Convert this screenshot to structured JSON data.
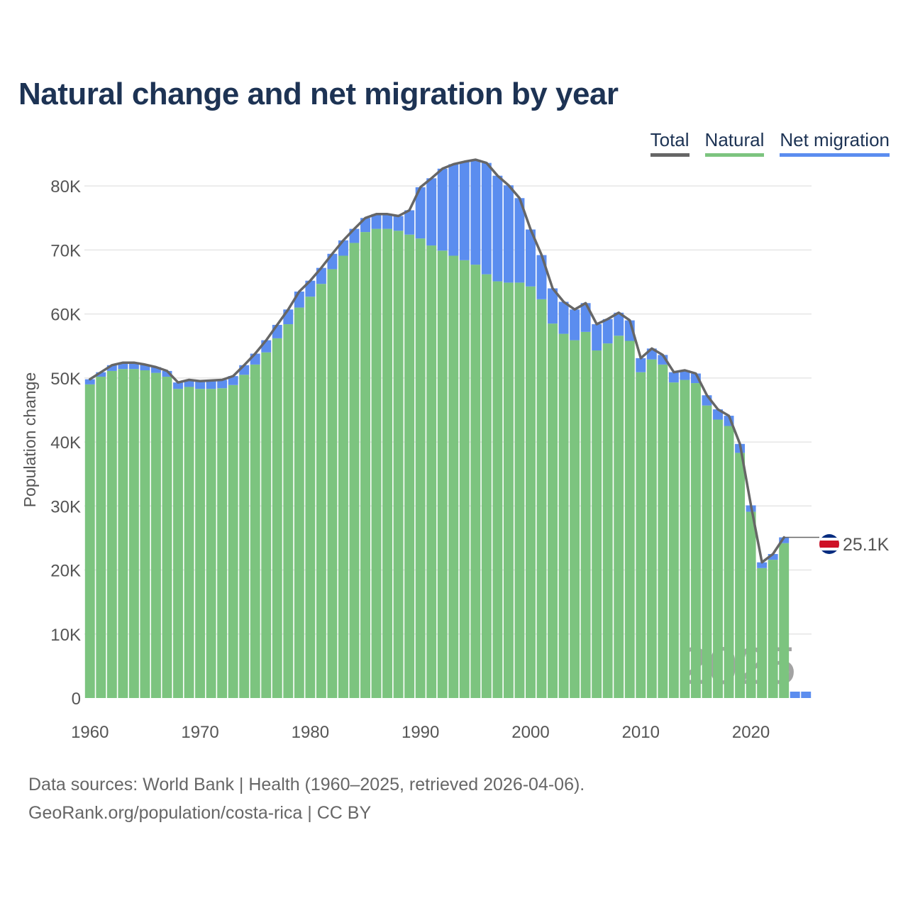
{
  "title": "Natural change and net migration by year",
  "legend": {
    "total": "Total",
    "natural": "Natural",
    "net_migration": "Net migration"
  },
  "colors": {
    "natural": "#7cc47f",
    "net_migration": "#5b8def",
    "total": "#666666",
    "grid": "#e6e6e6",
    "axis_text": "#555555"
  },
  "chart_data": {
    "type": "bar",
    "stacked": true,
    "title": "Natural change and net migration by year",
    "ylabel": "Population change",
    "xlabel": "",
    "ylim": [
      0,
      86000
    ],
    "xlim": [
      1960,
      2025
    ],
    "y_ticks": [
      0,
      10000,
      20000,
      30000,
      40000,
      50000,
      60000,
      70000,
      80000
    ],
    "y_tick_labels": [
      "0",
      "10K",
      "20K",
      "30K",
      "40K",
      "50K",
      "60K",
      "70K",
      "80K"
    ],
    "x_ticks": [
      "1960",
      "1970",
      "1980",
      "1990",
      "2000",
      "2010",
      "2020"
    ],
    "years": [
      1960,
      1961,
      1962,
      1963,
      1964,
      1965,
      1966,
      1967,
      1968,
      1969,
      1970,
      1971,
      1972,
      1973,
      1974,
      1975,
      1976,
      1977,
      1978,
      1979,
      1980,
      1981,
      1982,
      1983,
      1984,
      1985,
      1986,
      1987,
      1988,
      1989,
      1990,
      1991,
      1992,
      1993,
      1994,
      1995,
      1996,
      1997,
      1998,
      1999,
      2000,
      2001,
      2002,
      2003,
      2004,
      2005,
      2006,
      2007,
      2008,
      2009,
      2010,
      2011,
      2012,
      2013,
      2014,
      2015,
      2016,
      2017,
      2018,
      2019,
      2020,
      2021,
      2022,
      2023,
      2024,
      2025
    ],
    "series": [
      {
        "name": "Natural",
        "values": [
          49000,
          50200,
          51100,
          51400,
          51400,
          51200,
          50800,
          50200,
          48300,
          48600,
          48300,
          48300,
          48400,
          48900,
          50500,
          52100,
          54000,
          56200,
          58400,
          61000,
          62700,
          64700,
          67000,
          69100,
          71100,
          72800,
          73300,
          73300,
          73000,
          72400,
          71800,
          70700,
          69900,
          69100,
          68400,
          67700,
          66200,
          65100,
          64900,
          64900,
          64300,
          62300,
          58500,
          56900,
          55900,
          57200,
          54300,
          55400,
          56600,
          55800,
          50900,
          52900,
          52100,
          49300,
          49700,
          49200,
          45700,
          43500,
          42500,
          38300,
          29100,
          20300,
          21600,
          24200,
          0,
          0
        ]
      },
      {
        "name": "Net migration",
        "values": [
          800,
          700,
          900,
          1000,
          1000,
          900,
          900,
          900,
          1000,
          1100,
          1200,
          1300,
          1300,
          1400,
          1500,
          1700,
          1900,
          2100,
          2300,
          2500,
          2500,
          2500,
          2400,
          2400,
          2200,
          2200,
          2300,
          2300,
          2300,
          3800,
          8000,
          10500,
          12800,
          14300,
          15400,
          16400,
          17400,
          16500,
          15200,
          13200,
          8900,
          6900,
          5500,
          5000,
          4800,
          4500,
          4100,
          3800,
          3600,
          3200,
          2200,
          1700,
          1500,
          1600,
          1500,
          1500,
          1600,
          1600,
          1600,
          1400,
          1000,
          900,
          900,
          900,
          1000,
          1000
        ]
      }
    ],
    "total": [
      49800,
      50900,
      52000,
      52400,
      52400,
      52100,
      51700,
      51100,
      49300,
      49700,
      49500,
      49600,
      49700,
      50300,
      52000,
      53800,
      55900,
      58300,
      60700,
      63500,
      65200,
      67200,
      69400,
      71500,
      73300,
      75000,
      75600,
      75600,
      75300,
      76200,
      79800,
      81200,
      82700,
      83400,
      83800,
      84100,
      83600,
      81600,
      80100,
      78100,
      73200,
      69200,
      64000,
      61900,
      60700,
      61700,
      58400,
      59200,
      60200,
      59000,
      53100,
      54600,
      53600,
      50900,
      51200,
      50700,
      47300,
      45100,
      44100,
      39700,
      30100,
      21200,
      22500,
      25100,
      null,
      null
    ],
    "end_label": "25.1K",
    "watermark": "2025",
    "country_flag": "costa-rica-flag-icon"
  },
  "sources": {
    "line1": "Data sources: World Bank | Health (1960–2025, retrieved 2026-04-06).",
    "line2": "GeoRank.org/population/costa-rica | CC BY"
  }
}
